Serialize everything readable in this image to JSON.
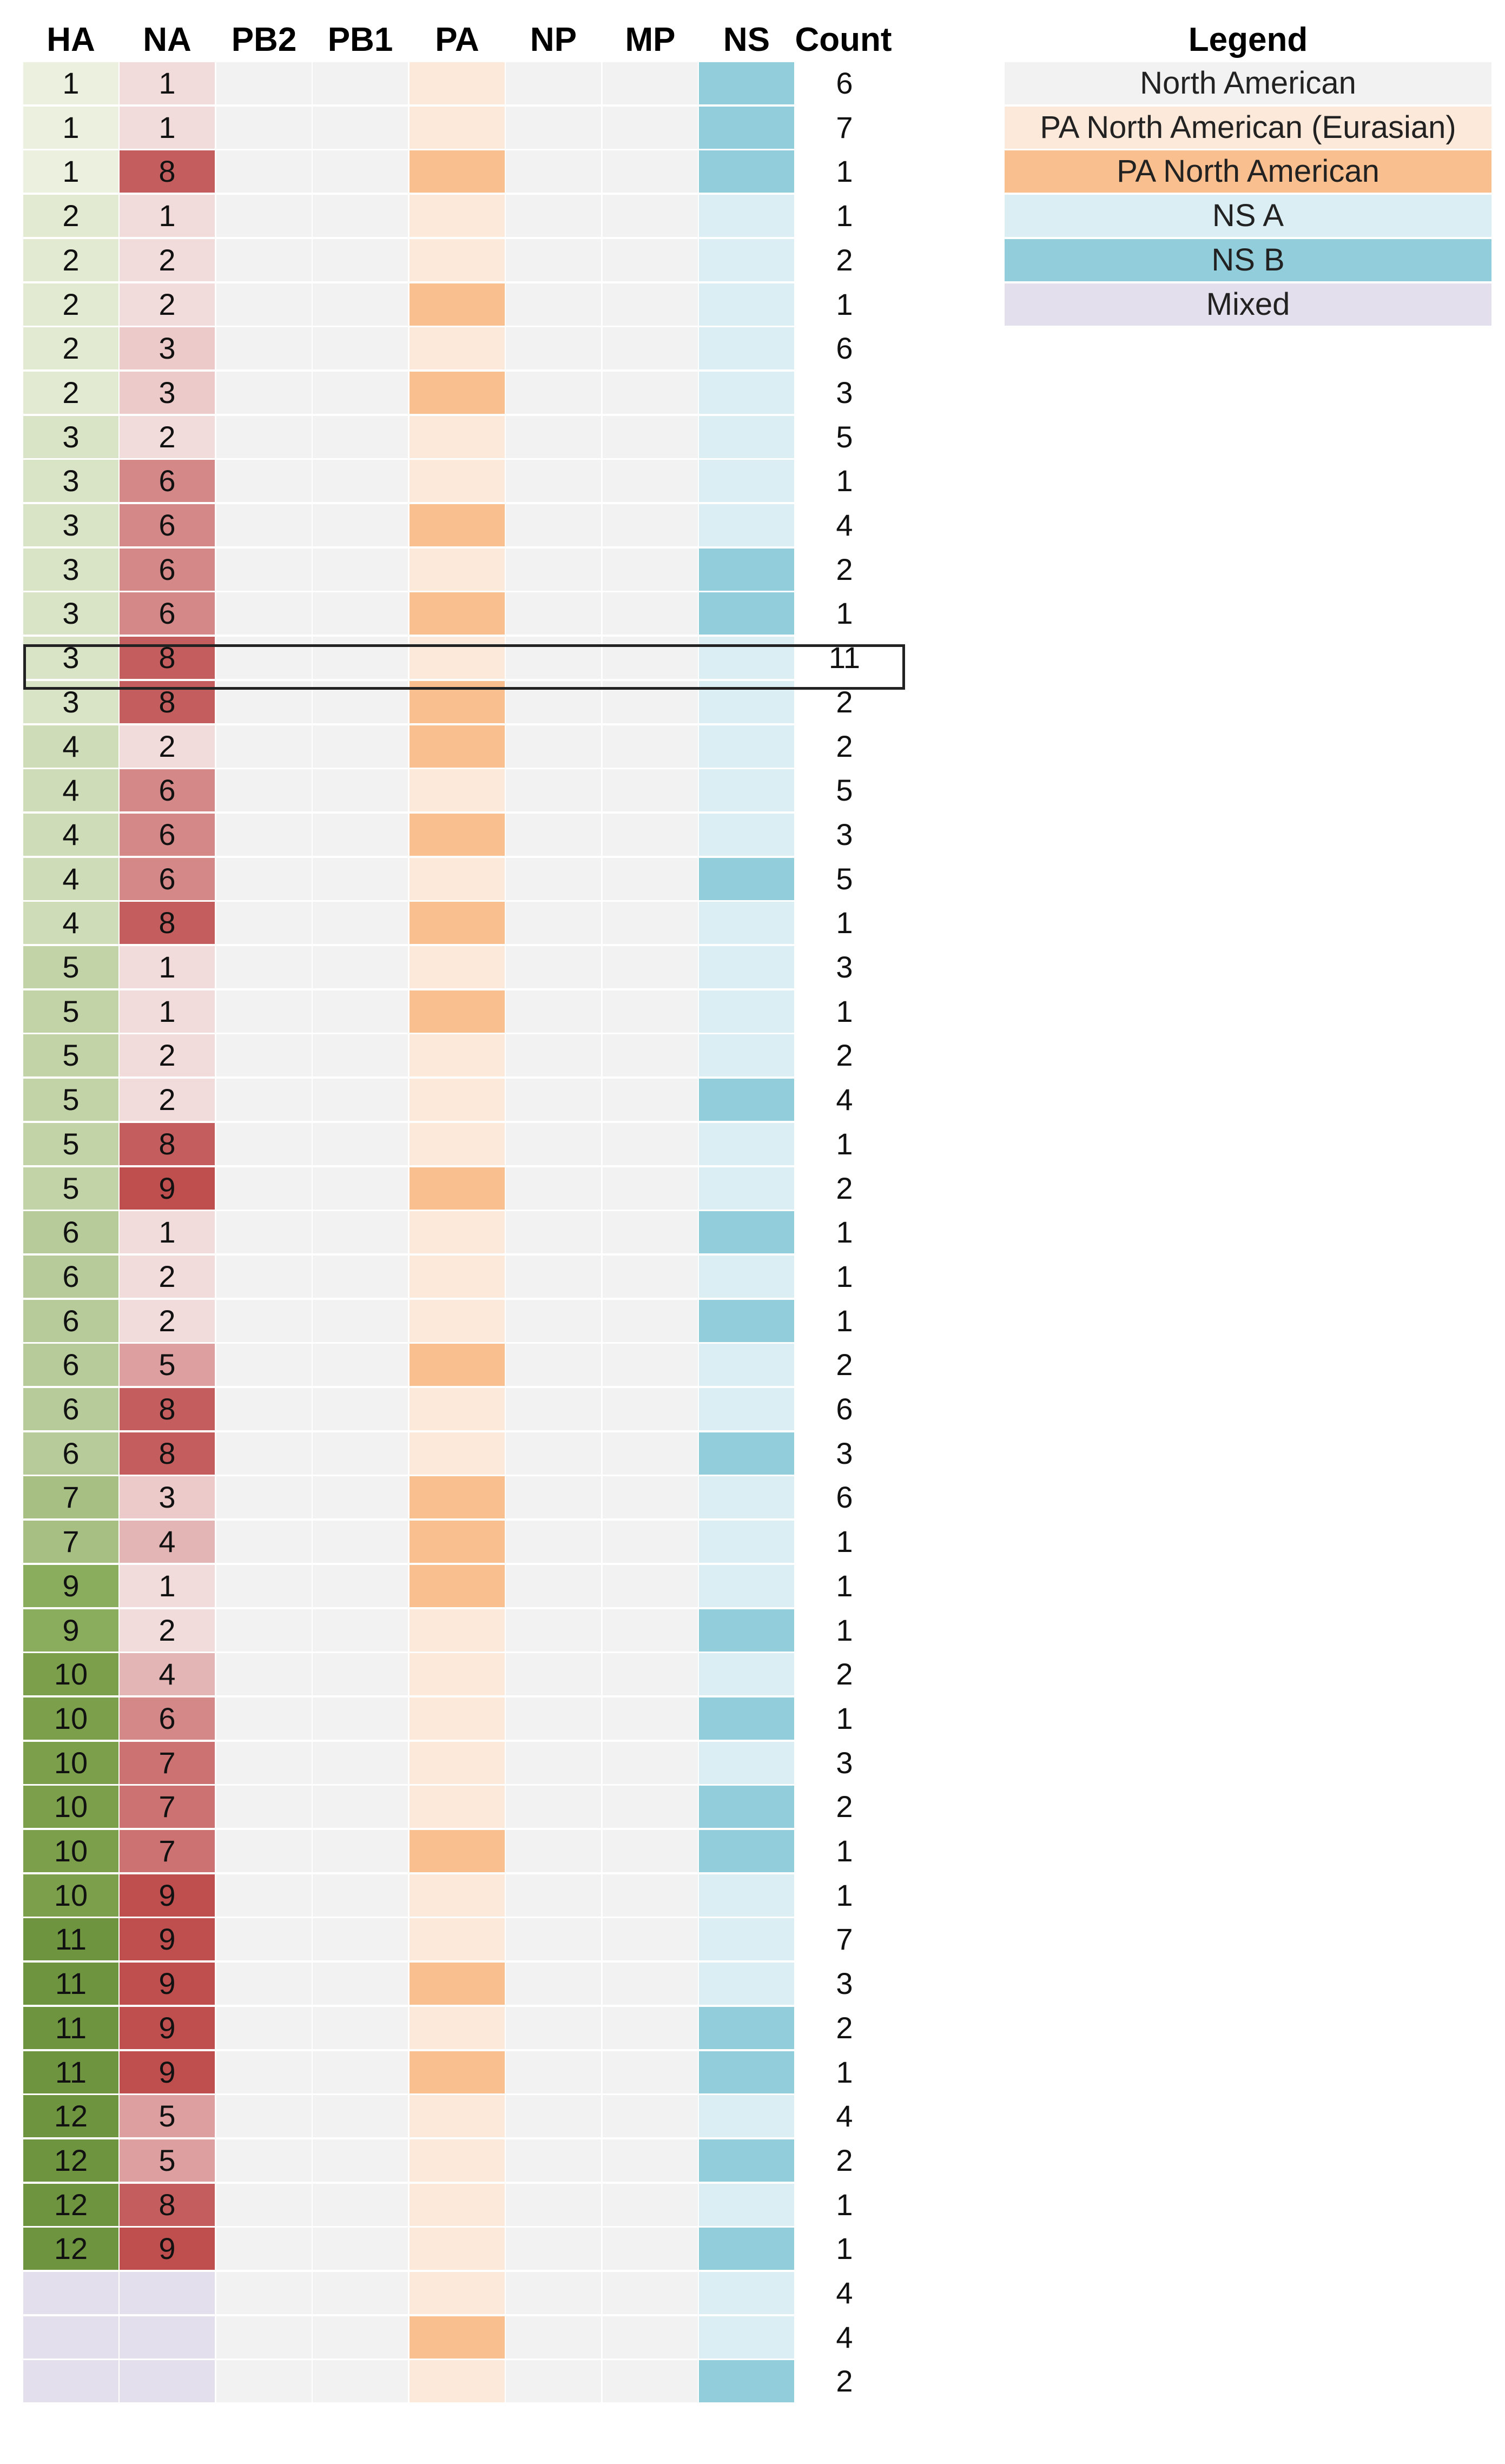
{
  "chart_data": {
    "type": "table",
    "columns": [
      "HA",
      "NA",
      "PB2",
      "PB1",
      "PA",
      "NP",
      "MP",
      "NS",
      "Count"
    ],
    "colors": {
      "north_american": "#f2f2f2",
      "pa_na_eurasian": "#fde9d9",
      "pa_na": "#f9bf8f",
      "ns_a": "#dbeef3",
      "ns_b": "#92cddc",
      "mixed": "#e4dfec",
      "ha_ramp": [
        "#ebf1de",
        "#e2ebd2",
        "#d8e4c5",
        "#cedcb8",
        "#c2d3a8",
        "#b7cb9a",
        "#a8bf84",
        "#98b570",
        "#8aac5d",
        "#7c9f4c",
        "#6f9440"
      ],
      "na_ramp": [
        "#f2dcdb",
        "#eccaca",
        "#e4b5b5",
        "#dd9f9f",
        "#d48888",
        "#cc7272",
        "#c45e5e",
        "#bf4f4f"
      ]
    },
    "rows": [
      {
        "HA": "1",
        "NA": "1",
        "PA": "E",
        "NS": "B",
        "Count": "6"
      },
      {
        "HA": "1",
        "NA": "1",
        "PA": "E",
        "NS": "B",
        "Count": "7"
      },
      {
        "HA": "1",
        "NA": "8",
        "PA": "N",
        "NS": "B",
        "Count": "1"
      },
      {
        "HA": "2",
        "NA": "1",
        "PA": "E",
        "NS": "A",
        "Count": "1"
      },
      {
        "HA": "2",
        "NA": "2",
        "PA": "E",
        "NS": "A",
        "Count": "2"
      },
      {
        "HA": "2",
        "NA": "2",
        "PA": "N",
        "NS": "A",
        "Count": "1"
      },
      {
        "HA": "2",
        "NA": "3",
        "PA": "E",
        "NS": "A",
        "Count": "6"
      },
      {
        "HA": "2",
        "NA": "3",
        "PA": "N",
        "NS": "A",
        "Count": "3"
      },
      {
        "HA": "3",
        "NA": "2",
        "PA": "E",
        "NS": "A",
        "Count": "5"
      },
      {
        "HA": "3",
        "NA": "6",
        "PA": "E",
        "NS": "A",
        "Count": "1"
      },
      {
        "HA": "3",
        "NA": "6",
        "PA": "N",
        "NS": "A",
        "Count": "4"
      },
      {
        "HA": "3",
        "NA": "6",
        "PA": "E",
        "NS": "B",
        "Count": "2"
      },
      {
        "HA": "3",
        "NA": "6",
        "PA": "N",
        "NS": "B",
        "Count": "1"
      },
      {
        "HA": "3",
        "NA": "8",
        "PA": "E",
        "NS": "A",
        "Count": "11",
        "highlight": true
      },
      {
        "HA": "3",
        "NA": "8",
        "PA": "N",
        "NS": "A",
        "Count": "2"
      },
      {
        "HA": "4",
        "NA": "2",
        "PA": "N",
        "NS": "A",
        "Count": "2"
      },
      {
        "HA": "4",
        "NA": "6",
        "PA": "E",
        "NS": "A",
        "Count": "5"
      },
      {
        "HA": "4",
        "NA": "6",
        "PA": "N",
        "NS": "A",
        "Count": "3"
      },
      {
        "HA": "4",
        "NA": "6",
        "PA": "E",
        "NS": "B",
        "Count": "5"
      },
      {
        "HA": "4",
        "NA": "8",
        "PA": "N",
        "NS": "A",
        "Count": "1"
      },
      {
        "HA": "5",
        "NA": "1",
        "PA": "E",
        "NS": "A",
        "Count": "3"
      },
      {
        "HA": "5",
        "NA": "1",
        "PA": "N",
        "NS": "A",
        "Count": "1"
      },
      {
        "HA": "5",
        "NA": "2",
        "PA": "E",
        "NS": "A",
        "Count": "2"
      },
      {
        "HA": "5",
        "NA": "2",
        "PA": "E",
        "NS": "B",
        "Count": "4"
      },
      {
        "HA": "5",
        "NA": "8",
        "PA": "E",
        "NS": "A",
        "Count": "1"
      },
      {
        "HA": "5",
        "NA": "9",
        "PA": "N",
        "NS": "A",
        "Count": "2"
      },
      {
        "HA": "6",
        "NA": "1",
        "PA": "E",
        "NS": "B",
        "Count": "1"
      },
      {
        "HA": "6",
        "NA": "2",
        "PA": "E",
        "NS": "A",
        "Count": "1"
      },
      {
        "HA": "6",
        "NA": "2",
        "PA": "E",
        "NS": "B",
        "Count": "1"
      },
      {
        "HA": "6",
        "NA": "5",
        "PA": "N",
        "NS": "A",
        "Count": "2"
      },
      {
        "HA": "6",
        "NA": "8",
        "PA": "E",
        "NS": "A",
        "Count": "6"
      },
      {
        "HA": "6",
        "NA": "8",
        "PA": "E",
        "NS": "B",
        "Count": "3"
      },
      {
        "HA": "7",
        "NA": "3",
        "PA": "N",
        "NS": "A",
        "Count": "6"
      },
      {
        "HA": "7",
        "NA": "4",
        "PA": "N",
        "NS": "A",
        "Count": "1"
      },
      {
        "HA": "9",
        "NA": "1",
        "PA": "N",
        "NS": "A",
        "Count": "1"
      },
      {
        "HA": "9",
        "NA": "2",
        "PA": "E",
        "NS": "B",
        "Count": "1"
      },
      {
        "HA": "10",
        "NA": "4",
        "PA": "E",
        "NS": "A",
        "Count": "2"
      },
      {
        "HA": "10",
        "NA": "6",
        "PA": "E",
        "NS": "B",
        "Count": "1"
      },
      {
        "HA": "10",
        "NA": "7",
        "PA": "E",
        "NS": "A",
        "Count": "3"
      },
      {
        "HA": "10",
        "NA": "7",
        "PA": "E",
        "NS": "B",
        "Count": "2"
      },
      {
        "HA": "10",
        "NA": "7",
        "PA": "N",
        "NS": "B",
        "Count": "1"
      },
      {
        "HA": "10",
        "NA": "9",
        "PA": "E",
        "NS": "A",
        "Count": "1"
      },
      {
        "HA": "11",
        "NA": "9",
        "PA": "E",
        "NS": "A",
        "Count": "7"
      },
      {
        "HA": "11",
        "NA": "9",
        "PA": "N",
        "NS": "A",
        "Count": "3"
      },
      {
        "HA": "11",
        "NA": "9",
        "PA": "E",
        "NS": "B",
        "Count": "2"
      },
      {
        "HA": "11",
        "NA": "9",
        "PA": "N",
        "NS": "B",
        "Count": "1"
      },
      {
        "HA": "12",
        "NA": "5",
        "PA": "E",
        "NS": "A",
        "Count": "4"
      },
      {
        "HA": "12",
        "NA": "5",
        "PA": "E",
        "NS": "B",
        "Count": "2"
      },
      {
        "HA": "12",
        "NA": "8",
        "PA": "E",
        "NS": "A",
        "Count": "1"
      },
      {
        "HA": "12",
        "NA": "9",
        "PA": "E",
        "NS": "B",
        "Count": "1"
      },
      {
        "HA": "",
        "NA": "",
        "PA": "E",
        "NS": "A",
        "Count": "4",
        "mixed": true
      },
      {
        "HA": "",
        "NA": "",
        "PA": "N",
        "NS": "A",
        "Count": "4",
        "mixed": true
      },
      {
        "HA": "",
        "NA": "",
        "PA": "E",
        "NS": "B",
        "Count": "2",
        "mixed": true
      }
    ],
    "legend": {
      "title": "Legend",
      "items": [
        {
          "label": "North American",
          "color": "#f2f2f2"
        },
        {
          "label": "PA North American (Eurasian)",
          "color": "#fde9d9"
        },
        {
          "label": "PA North American",
          "color": "#f9bf8f"
        },
        {
          "label": "NS A",
          "color": "#dbeef3"
        },
        {
          "label": "NS B",
          "color": "#92cddc"
        },
        {
          "label": "Mixed",
          "color": "#e4dfec"
        }
      ]
    }
  }
}
